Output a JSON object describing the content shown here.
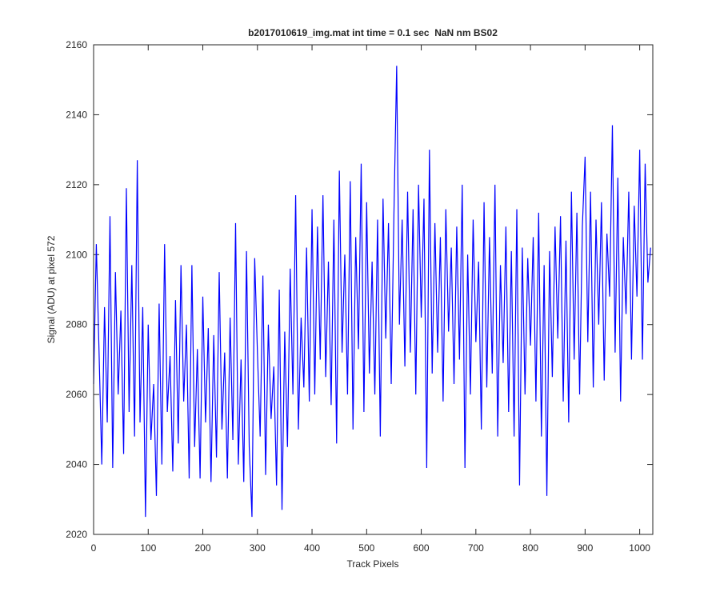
{
  "chart_data": {
    "type": "line",
    "title": "b2017010619_img.mat int time = 0.1 sec  NaN nm BS02",
    "xlabel": "Track Pixels",
    "ylabel": "Signal (ADU) at pixel 572",
    "xlim": [
      0,
      1024
    ],
    "xticks": [
      0,
      100,
      200,
      300,
      400,
      500,
      600,
      700,
      800,
      900,
      1000
    ],
    "ylim": [
      2020,
      2160
    ],
    "yticks": [
      2020,
      2040,
      2060,
      2080,
      2100,
      2120,
      2140,
      2160
    ],
    "color": "#0000ff",
    "x": [
      0,
      5,
      10,
      15,
      20,
      25,
      30,
      35,
      40,
      45,
      50,
      55,
      60,
      65,
      70,
      75,
      80,
      85,
      90,
      95,
      100,
      105,
      110,
      115,
      120,
      125,
      130,
      135,
      140,
      145,
      150,
      155,
      160,
      165,
      170,
      175,
      180,
      185,
      190,
      195,
      200,
      205,
      210,
      215,
      220,
      225,
      230,
      235,
      240,
      245,
      250,
      255,
      260,
      265,
      270,
      275,
      280,
      285,
      290,
      295,
      300,
      305,
      310,
      315,
      320,
      325,
      330,
      335,
      340,
      345,
      350,
      355,
      360,
      365,
      370,
      375,
      380,
      385,
      390,
      395,
      400,
      405,
      410,
      415,
      420,
      425,
      430,
      435,
      440,
      445,
      450,
      455,
      460,
      465,
      470,
      475,
      480,
      485,
      490,
      495,
      500,
      505,
      510,
      515,
      520,
      525,
      530,
      535,
      540,
      545,
      550,
      555,
      560,
      565,
      570,
      575,
      580,
      585,
      590,
      595,
      600,
      605,
      610,
      615,
      620,
      625,
      630,
      635,
      640,
      645,
      650,
      655,
      660,
      665,
      670,
      675,
      680,
      685,
      690,
      695,
      700,
      705,
      710,
      715,
      720,
      725,
      730,
      735,
      740,
      745,
      750,
      755,
      760,
      765,
      770,
      775,
      780,
      785,
      790,
      795,
      800,
      805,
      810,
      815,
      820,
      825,
      830,
      835,
      840,
      845,
      850,
      855,
      860,
      865,
      870,
      875,
      880,
      885,
      890,
      895,
      900,
      905,
      910,
      915,
      920,
      925,
      930,
      935,
      940,
      945,
      950,
      955,
      960,
      965,
      970,
      975,
      980,
      985,
      990,
      995,
      1000,
      1005,
      1010,
      1015,
      1020
    ],
    "values": [
      2063,
      2103,
      2072,
      2040,
      2085,
      2052,
      2111,
      2039,
      2095,
      2060,
      2084,
      2043,
      2119,
      2055,
      2097,
      2048,
      2127,
      2052,
      2085,
      2025,
      2080,
      2047,
      2063,
      2031,
      2086,
      2040,
      2103,
      2055,
      2071,
      2038,
      2087,
      2046,
      2097,
      2058,
      2080,
      2036,
      2097,
      2045,
      2073,
      2036,
      2088,
      2052,
      2079,
      2035,
      2077,
      2042,
      2095,
      2050,
      2072,
      2036,
      2082,
      2047,
      2109,
      2040,
      2070,
      2035,
      2101,
      2045,
      2025,
      2099,
      2072,
      2048,
      2094,
      2037,
      2080,
      2053,
      2068,
      2034,
      2090,
      2027,
      2078,
      2045,
      2096,
      2060,
      2117,
      2050,
      2082,
      2062,
      2102,
      2058,
      2113,
      2060,
      2108,
      2070,
      2117,
      2065,
      2098,
      2057,
      2110,
      2046,
      2124,
      2072,
      2100,
      2060,
      2121,
      2050,
      2105,
      2073,
      2126,
      2055,
      2115,
      2066,
      2098,
      2060,
      2110,
      2048,
      2116,
      2076,
      2109,
      2063,
      2112,
      2154,
      2080,
      2110,
      2068,
      2118,
      2072,
      2113,
      2060,
      2120,
      2082,
      2116,
      2039,
      2130,
      2066,
      2109,
      2072,
      2105,
      2058,
      2113,
      2078,
      2102,
      2063,
      2108,
      2070,
      2120,
      2039,
      2100,
      2060,
      2110,
      2075,
      2098,
      2050,
      2115,
      2062,
      2105,
      2066,
      2120,
      2048,
      2097,
      2069,
      2108,
      2055,
      2101,
      2048,
      2113,
      2034,
      2102,
      2060,
      2099,
      2074,
      2105,
      2058,
      2112,
      2048,
      2097,
      2031,
      2101,
      2065,
      2108,
      2076,
      2111,
      2058,
      2104,
      2052,
      2118,
      2070,
      2112,
      2060,
      2108,
      2128,
      2075,
      2118,
      2062,
      2110,
      2080,
      2115,
      2064,
      2106,
      2088,
      2137,
      2072,
      2122,
      2058,
      2105,
      2083,
      2118,
      2070,
      2114,
      2088,
      2130,
      2070,
      2126,
      2092,
      2102
    ]
  }
}
